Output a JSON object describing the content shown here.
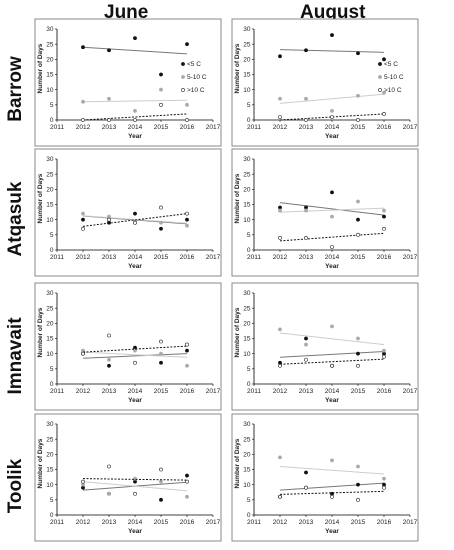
{
  "headers": {
    "columns": [
      "June",
      "August"
    ],
    "rows": [
      "Barrow",
      "Atqasuk",
      "Imnavait",
      "Toolik"
    ]
  },
  "legend": [
    "<5 C",
    "5-10 C",
    ">10 C"
  ],
  "colors": {
    "lt5": "#111111",
    "c5to10": "#aaaaaa",
    "gt10": "#ffffff",
    "frame": "#8a8a8a",
    "axis": "#000000"
  },
  "chart_data": [
    {
      "type": "scatter",
      "site": "Barrow",
      "month": "June",
      "xlabel": "Year",
      "ylabel": "Number of Days",
      "xlim": [
        2011,
        2017
      ],
      "ylim": [
        0,
        30
      ],
      "x_ticks": [
        2011,
        2012,
        2013,
        2014,
        2015,
        2016,
        2017
      ],
      "y_ticks": [
        0,
        5,
        10,
        15,
        20,
        25,
        30
      ],
      "show_legend": true,
      "x": [
        2012,
        2013,
        2014,
        2015,
        2016
      ],
      "series": [
        {
          "name": "<5 C",
          "values": [
            24,
            23,
            27,
            15,
            25
          ],
          "trend": [
            24,
            21.8
          ]
        },
        {
          "name": "5-10 C",
          "values": [
            6,
            7,
            3,
            10,
            5
          ],
          "trend": [
            6,
            6.5
          ]
        },
        {
          "name": ">10 C",
          "values": [
            0,
            0,
            0,
            5,
            0
          ],
          "trend": [
            0,
            2
          ]
        }
      ]
    },
    {
      "type": "scatter",
      "site": "Barrow",
      "month": "August",
      "xlabel": "Year",
      "ylabel": "Number of Days",
      "xlim": [
        2011,
        2017
      ],
      "ylim": [
        0,
        30
      ],
      "x_ticks": [
        2011,
        2012,
        2013,
        2014,
        2015,
        2016,
        2017
      ],
      "y_ticks": [
        0,
        5,
        10,
        15,
        20,
        25,
        30
      ],
      "show_legend": true,
      "x": [
        2012,
        2013,
        2014,
        2015,
        2016
      ],
      "series": [
        {
          "name": "<5 C",
          "values": [
            21,
            23,
            28,
            22,
            20
          ],
          "trend": [
            23.2,
            22.3
          ]
        },
        {
          "name": "5-10 C",
          "values": [
            7,
            7,
            3,
            8,
            9
          ],
          "trend": [
            5.5,
            8.5
          ]
        },
        {
          "name": ">10 C",
          "values": [
            1,
            0,
            1,
            0,
            2
          ],
          "trend": [
            0,
            2
          ]
        }
      ]
    },
    {
      "type": "scatter",
      "site": "Atqasuk",
      "month": "June",
      "xlabel": "Year",
      "ylabel": "Number of Days",
      "xlim": [
        2011,
        2017
      ],
      "ylim": [
        0,
        30
      ],
      "x_ticks": [
        2011,
        2012,
        2013,
        2014,
        2015,
        2016,
        2017
      ],
      "y_ticks": [
        0,
        5,
        10,
        15,
        20,
        25,
        30
      ],
      "show_legend": false,
      "x": [
        2012,
        2013,
        2014,
        2015,
        2016
      ],
      "series": [
        {
          "name": "<5 C",
          "values": [
            10,
            9,
            12,
            7,
            10
          ],
          "trend": [
            11.2,
            8.6
          ]
        },
        {
          "name": "5-10 C",
          "values": [
            12,
            11,
            9,
            9,
            8
          ],
          "trend": [
            11.3,
            8.8
          ]
        },
        {
          "name": ">10 C",
          "values": [
            7,
            10,
            9,
            14,
            12
          ],
          "trend": [
            7.8,
            12
          ]
        }
      ]
    },
    {
      "type": "scatter",
      "site": "Atqasuk",
      "month": "August",
      "xlabel": "Year",
      "ylabel": "Number of Days",
      "xlim": [
        2011,
        2017
      ],
      "ylim": [
        0,
        30
      ],
      "x_ticks": [
        2011,
        2012,
        2013,
        2014,
        2015,
        2016,
        2017
      ],
      "y_ticks": [
        0,
        5,
        10,
        15,
        20,
        25,
        30
      ],
      "show_legend": false,
      "x": [
        2012,
        2013,
        2014,
        2015,
        2016
      ],
      "series": [
        {
          "name": "<5 C",
          "values": [
            14,
            14,
            19,
            10,
            11
          ],
          "trend": [
            15.6,
            11.5
          ]
        },
        {
          "name": "5-10 C",
          "values": [
            13,
            13,
            11,
            16,
            13
          ],
          "trend": [
            12.5,
            13.8
          ]
        },
        {
          "name": ">10 C",
          "values": [
            4,
            4,
            1,
            5,
            7
          ],
          "trend": [
            3,
            5.5
          ]
        }
      ]
    },
    {
      "type": "scatter",
      "site": "Imnavait",
      "month": "June",
      "xlabel": "Year",
      "ylabel": "Number of Days",
      "xlim": [
        2011,
        2017
      ],
      "ylim": [
        0,
        30
      ],
      "x_ticks": [
        2011,
        2012,
        2013,
        2014,
        2015,
        2016,
        2017
      ],
      "y_ticks": [
        0,
        5,
        10,
        15,
        20,
        25,
        30
      ],
      "show_legend": false,
      "x": [
        2012,
        2013,
        2014,
        2015,
        2016
      ],
      "series": [
        {
          "name": "<5 C",
          "values": [
            10,
            6,
            12,
            7,
            11
          ],
          "trend": [
            8.5,
            10
          ]
        },
        {
          "name": "5-10 C",
          "values": [
            11,
            8,
            11,
            10,
            6
          ],
          "trend": [
            10.5,
            8.8
          ]
        },
        {
          "name": ">10 C",
          "values": [
            10,
            16,
            7,
            14,
            13
          ],
          "trend": [
            10.5,
            12.5
          ]
        }
      ]
    },
    {
      "type": "scatter",
      "site": "Imnavait",
      "month": "August",
      "xlabel": "Year",
      "ylabel": "Number of Days",
      "xlim": [
        2011,
        2017
      ],
      "ylim": [
        0,
        30
      ],
      "x_ticks": [
        2011,
        2012,
        2013,
        2014,
        2015,
        2016,
        2017
      ],
      "y_ticks": [
        0,
        5,
        10,
        15,
        20,
        25,
        30
      ],
      "show_legend": false,
      "x": [
        2012,
        2013,
        2014,
        2015,
        2016
      ],
      "series": [
        {
          "name": "<5 C",
          "values": [
            7,
            15,
            6,
            10,
            10
          ],
          "trend": [
            8.8,
            10.7
          ]
        },
        {
          "name": "5-10 C",
          "values": [
            18,
            13,
            19,
            15,
            11
          ],
          "trend": [
            16.8,
            13
          ]
        },
        {
          "name": ">10 C",
          "values": [
            6,
            8,
            6,
            6,
            9
          ],
          "trend": [
            6.5,
            8.2
          ]
        }
      ]
    },
    {
      "type": "scatter",
      "site": "Toolik",
      "month": "June",
      "xlabel": "Year",
      "ylabel": "Number of Days",
      "xlim": [
        2011,
        2017
      ],
      "ylim": [
        0,
        30
      ],
      "x_ticks": [
        2011,
        2012,
        2013,
        2014,
        2015,
        2016,
        2017
      ],
      "y_ticks": [
        0,
        5,
        10,
        15,
        20,
        25,
        30
      ],
      "show_legend": false,
      "x": [
        2012,
        2013,
        2014,
        2015,
        2016
      ],
      "series": [
        {
          "name": "<5 C",
          "values": [
            9,
            7,
            11,
            5,
            13
          ],
          "trend": [
            8.2,
            10.8
          ]
        },
        {
          "name": "5-10 C",
          "values": [
            10,
            7,
            12,
            11,
            6
          ],
          "trend": [
            11,
            8
          ]
        },
        {
          "name": ">10 C",
          "values": [
            11,
            16,
            7,
            15,
            11
          ],
          "trend": [
            12,
            11.5
          ]
        }
      ]
    },
    {
      "type": "scatter",
      "site": "Toolik",
      "month": "August",
      "xlabel": "Year",
      "ylabel": "Number of Days",
      "xlim": [
        2011,
        2017
      ],
      "ylim": [
        0,
        30
      ],
      "x_ticks": [
        2011,
        2012,
        2013,
        2014,
        2015,
        2016,
        2017
      ],
      "y_ticks": [
        0,
        5,
        10,
        15,
        20,
        25,
        30
      ],
      "show_legend": false,
      "x": [
        2012,
        2013,
        2014,
        2015,
        2016
      ],
      "series": [
        {
          "name": "<5 C",
          "values": [
            6,
            14,
            7,
            10,
            10
          ],
          "trend": [
            8.2,
            10.5
          ]
        },
        {
          "name": "5-10 C",
          "values": [
            19,
            9,
            18,
            16,
            12
          ],
          "trend": [
            16,
            13.5
          ]
        },
        {
          "name": ">10 C",
          "values": [
            6,
            9,
            6,
            5,
            9
          ],
          "trend": [
            6.8,
            7.8
          ]
        }
      ]
    }
  ]
}
